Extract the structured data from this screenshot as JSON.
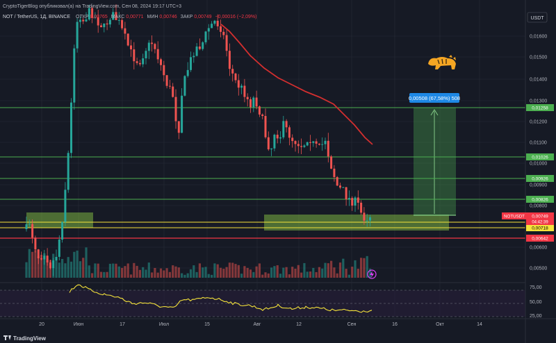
{
  "publisher_line": "CryptoTigerBlog опубликовал(а) на TradingView.com, Сен 08, 2024 19:17 UTC+3",
  "symbol_line": {
    "symbol": "NOT / TetherUS, 1Д, BINANCE",
    "open_label": "ОТКР",
    "open_value": "0,00765",
    "high_label": "МАКС",
    "high_value": "0,00771",
    "low_label": "МИН",
    "low_value": "0,00746",
    "close_label": "ЗАКР",
    "close_value": "0,00749",
    "change": "−0,00016 (−2,09%)"
  },
  "currency_button": "USDT",
  "price_scale": [
    "0,01600",
    "0,01500",
    "0,01400",
    "0,01300",
    "0,01200",
    "0,01100",
    "0,01000",
    "0,00900",
    "0,00800",
    "0,00700",
    "0,00600",
    "0,00500"
  ],
  "level_tags": [
    {
      "text": "0,01258",
      "color": "#4caf50"
    },
    {
      "text": "0,01026",
      "color": "#4caf50"
    },
    {
      "text": "0,00926",
      "color": "#4caf50"
    },
    {
      "text": "0,00826",
      "color": "#4caf50"
    },
    {
      "text": "0,00718",
      "color": "#f5e33b"
    },
    {
      "text": "0,00642",
      "color": "#f23645"
    }
  ],
  "symbol_tag": {
    "label": "NOTUSDT",
    "price": "0,00749",
    "timer": "04:42:39",
    "color": "#f23645"
  },
  "measure_label": "0,00508 (67,58%) 508",
  "rsi_scale": [
    "75,00",
    "50,00",
    "25,00"
  ],
  "time_axis": [
    "20",
    "Июн",
    "17",
    "Июл",
    "15",
    "Авг",
    "12",
    "Сен",
    "16",
    "Окт",
    "14"
  ],
  "footer_logo": "TradingView",
  "colors": {
    "bull": "#26a69a",
    "bear": "#ef5350",
    "ma": "#d32f2f",
    "support": "#4caf50",
    "yellow": "#f5e33b",
    "red_level": "#f23645",
    "rsi": "#f5e33b"
  },
  "icons": [
    "tiger-logo-icon",
    "tradingview-logo-icon",
    "lightning-icon"
  ]
}
